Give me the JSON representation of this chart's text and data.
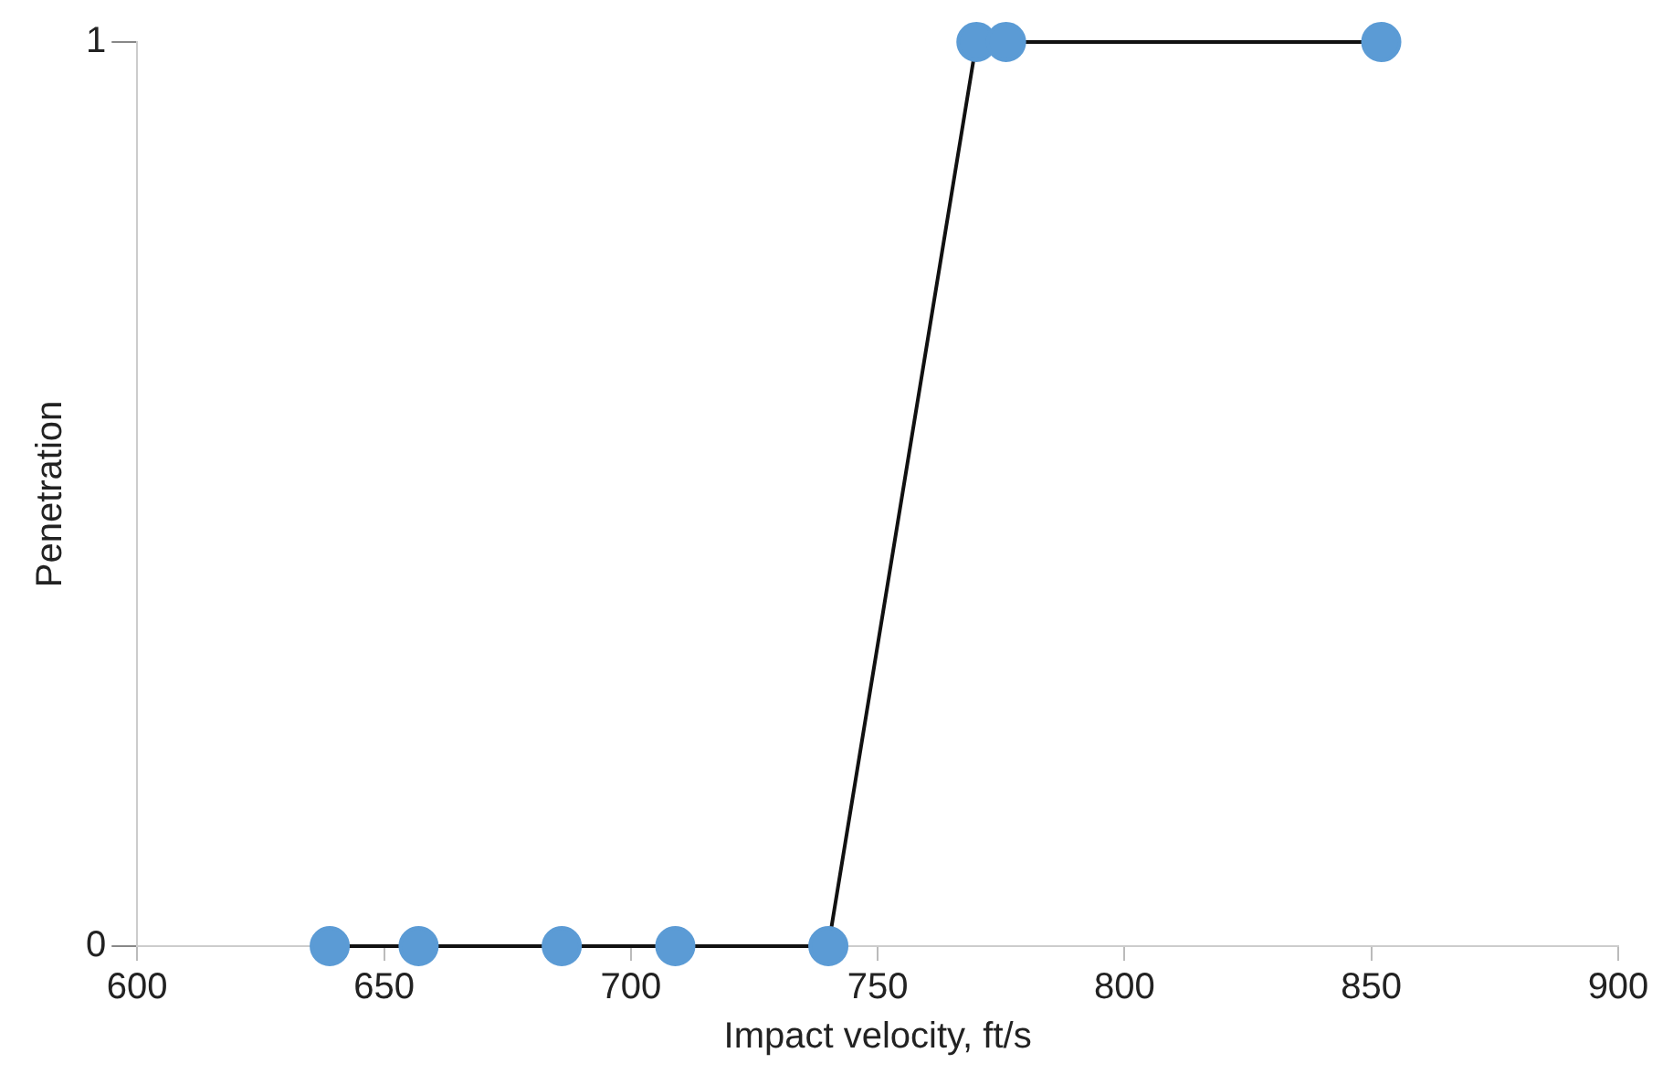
{
  "chart_data": {
    "type": "line",
    "xlabel": "Impact velocity, ft/s",
    "ylabel": "Penetration",
    "x": [
      639,
      657,
      686,
      709,
      740,
      770,
      776,
      852
    ],
    "series": [
      {
        "color": "#5b9bd5",
        "values": [
          0,
          0,
          0,
          0,
          0,
          1,
          1,
          1
        ]
      }
    ],
    "xlim": [
      600,
      900
    ],
    "xticks": [
      600,
      650,
      700,
      750,
      800,
      850,
      900
    ],
    "ylim": [
      0,
      1
    ],
    "yticks": [
      0,
      1
    ],
    "grid": false,
    "legend": false,
    "marker": "circle",
    "line_style": "solid"
  }
}
